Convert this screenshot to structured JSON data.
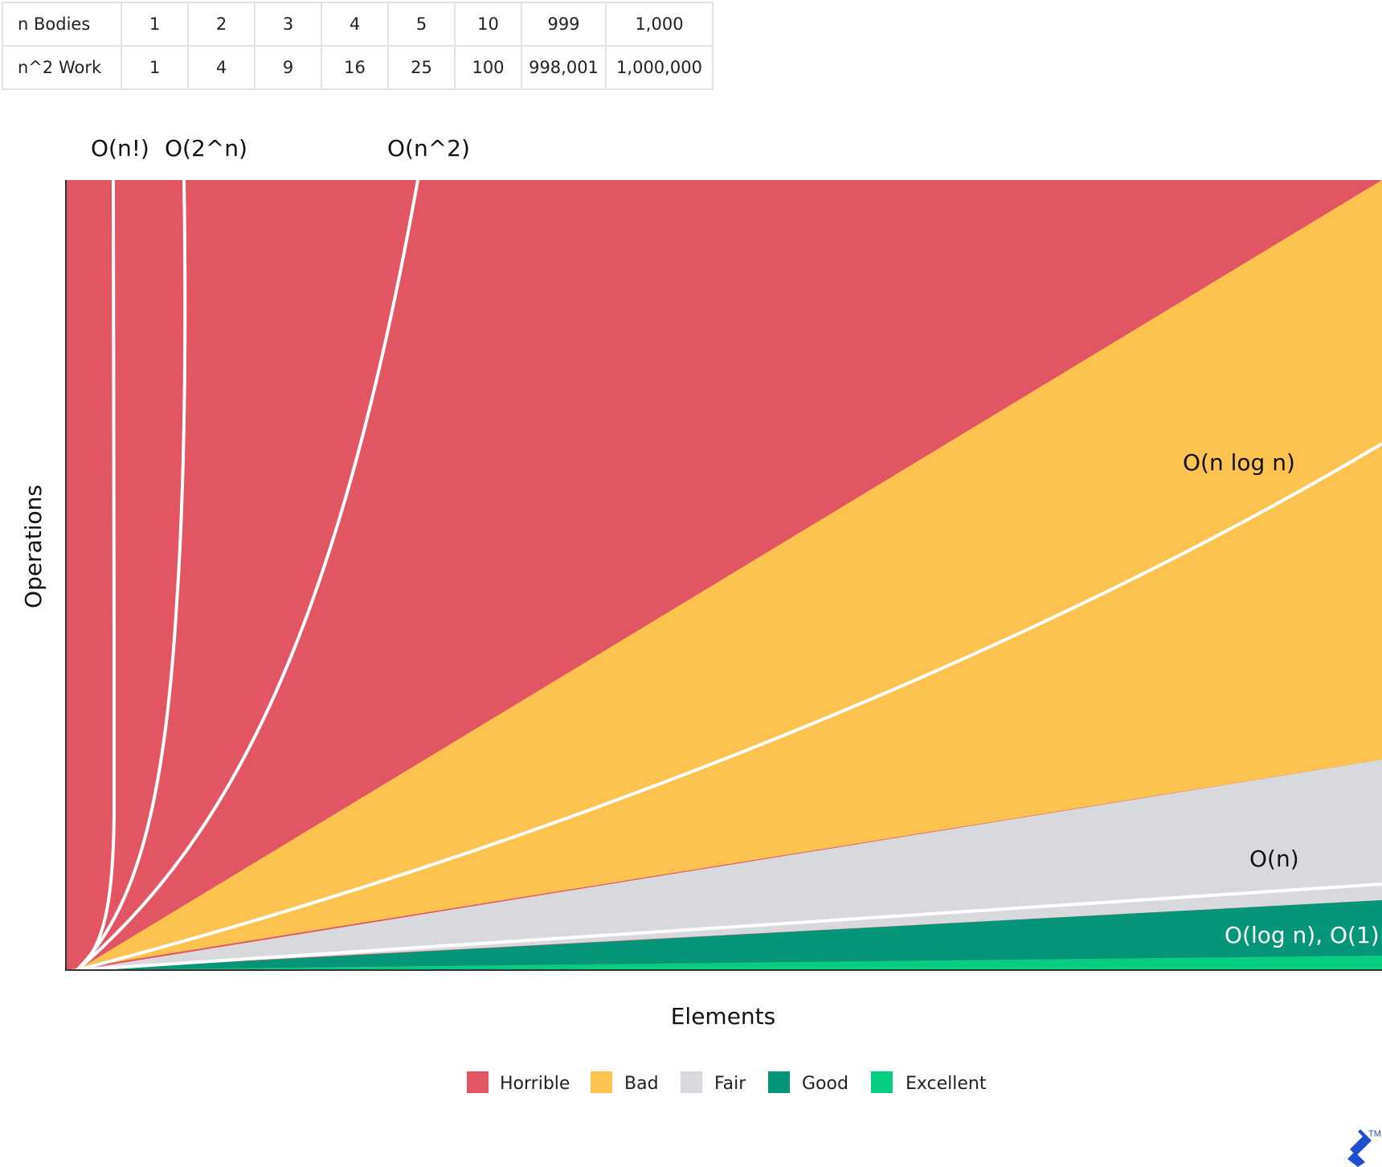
{
  "table": {
    "rows": [
      {
        "label": "n Bodies",
        "values": [
          "1",
          "2",
          "3",
          "4",
          "5",
          "10",
          "999",
          "1,000"
        ]
      },
      {
        "label": "n^2 Work",
        "values": [
          "1",
          "4",
          "9",
          "16",
          "25",
          "100",
          "998,001",
          "1,000,000"
        ]
      }
    ]
  },
  "chart_data": {
    "type": "area",
    "title": "",
    "xlabel": "Elements",
    "ylabel": "Operations",
    "grid": false,
    "legend_placement": "bottom-center",
    "curves": [
      {
        "name": "O(n!)"
      },
      {
        "name": "O(2^n)"
      },
      {
        "name": "O(n^2)"
      },
      {
        "name": "O(n log n)"
      },
      {
        "name": "O(n)"
      },
      {
        "name": "O(log n), O(1)"
      }
    ],
    "zones": [
      {
        "name": "Horrible",
        "color": "#e25563"
      },
      {
        "name": "Bad",
        "color": "#fcc350"
      },
      {
        "name": "Fair",
        "color": "#d8d9dc"
      },
      {
        "name": "Good",
        "color": "#05967a"
      },
      {
        "name": "Excellent",
        "color": "#05ce80"
      }
    ]
  },
  "brand": {
    "logo_icon": "toptal-logo-icon",
    "trademark": "TM",
    "color": "#204ecf"
  }
}
